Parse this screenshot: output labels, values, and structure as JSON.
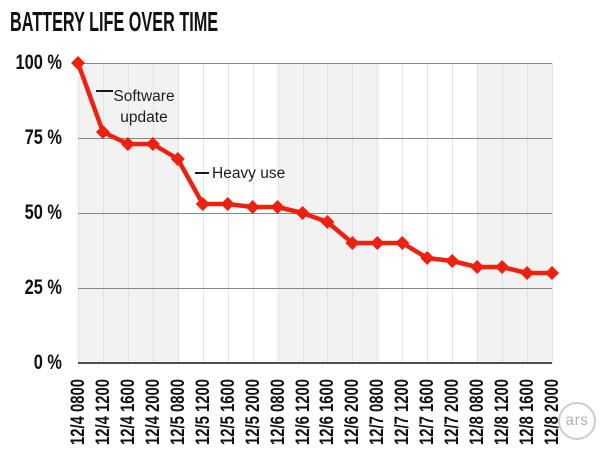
{
  "colors": {
    "line": "#ee2010",
    "marker": "#ee2010",
    "band": "#f2f2f2",
    "hgrid": "#878787",
    "axis": "#4f4f4f",
    "vgrid": "#e3e3e3",
    "text": "#111111",
    "annotation_text": "#1c1c1c",
    "logo": "#b3b3b3"
  },
  "logo": {
    "text": "ars"
  },
  "chart_data": {
    "type": "line",
    "title": "BATTERY LIFE OVER TIME",
    "x": [
      "12/4 0800",
      "12/4 1200",
      "12/4 1600",
      "12/4 2000",
      "12/5 0800",
      "12/5 1200",
      "12/5 1600",
      "12/5 2000",
      "12/6 0800",
      "12/6 1200",
      "12/6 1600",
      "12/6 2000",
      "12/7 0800",
      "12/7 1200",
      "12/7 1600",
      "12/7 2000",
      "12/8 0800",
      "12/8 1200",
      "12/8 1600",
      "12/8 2000"
    ],
    "values": [
      100,
      77,
      73,
      73,
      68,
      53,
      53,
      52,
      52,
      50,
      47,
      40,
      40,
      40,
      35,
      34,
      32,
      32,
      30,
      30
    ],
    "unit": "%",
    "ylim": [
      0,
      100
    ],
    "y_ticks": [
      {
        "label": "100 %",
        "value": 100
      },
      {
        "label": "75 %",
        "value": 75
      },
      {
        "label": "50 %",
        "value": 50
      },
      {
        "label": "25 %",
        "value": 25
      },
      {
        "label": "0 %",
        "value": 0
      }
    ],
    "marker": "diamond",
    "grid": true,
    "legend": "none",
    "shaded_bands": [
      {
        "day": "12/4",
        "from_index": 0,
        "to_index": 4
      },
      {
        "day": "12/6",
        "from_index": 8,
        "to_index": 12
      },
      {
        "day": "12/8",
        "from_index": 16,
        "to_index": 19
      }
    ],
    "annotations": [
      {
        "lines": [
          "Software",
          "update"
        ],
        "points_to": "drop from 100% to 77% after 12/4 0800"
      },
      {
        "lines": [
          "Heavy use"
        ],
        "points_to": "drop from 68% to 53% after 12/5 0800"
      }
    ]
  }
}
